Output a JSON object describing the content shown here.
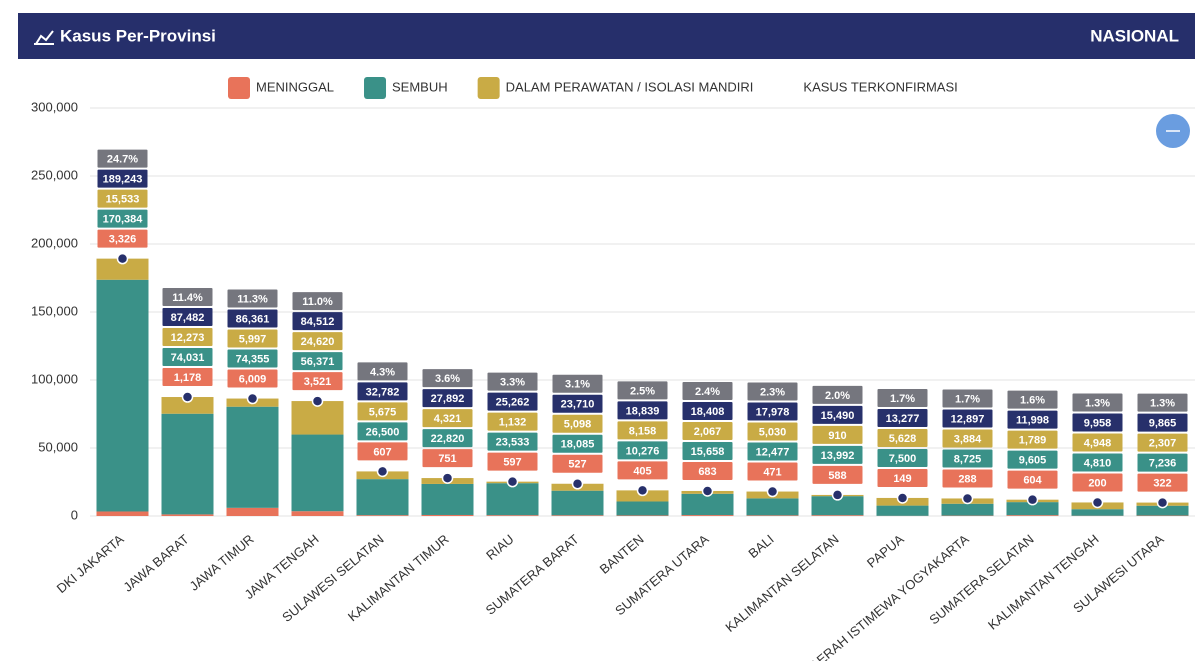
{
  "header": {
    "title": "Kasus Per-Provinsi",
    "scope": "NASIONAL"
  },
  "chart_data": {
    "type": "stacked-bar",
    "categories": [
      "DKI JAKARTA",
      "JAWA BARAT",
      "JAWA TIMUR",
      "JAWA TENGAH",
      "SULAWESI SELATAN",
      "KALIMANTAN TIMUR",
      "RIAU",
      "SUMATERA BARAT",
      "BANTEN",
      "SUMATERA UTARA",
      "BALI",
      "KALIMANTAN SELATAN",
      "PAPUA",
      "DAERAH ISTIMEWA YOGYAKARTA",
      "SUMATERA SELATAN",
      "KALIMANTAN TENGAH",
      "SULAWESI UTARA"
    ],
    "series": [
      {
        "name": "MENINGGAL",
        "color": "#e8735a",
        "values": [
          3326,
          1178,
          6009,
          3521,
          607,
          751,
          597,
          527,
          405,
          683,
          471,
          588,
          149,
          288,
          604,
          200,
          322
        ],
        "value_labels": [
          "3,326",
          "1,178",
          "6,009",
          "3,521",
          "607",
          "751",
          "597",
          "527",
          "405",
          "683",
          "471",
          "588",
          "149",
          "288",
          "604",
          "200",
          "322"
        ]
      },
      {
        "name": "SEMBUH",
        "color": "#3a9188",
        "values": [
          170384,
          74031,
          74355,
          56371,
          26500,
          22820,
          23533,
          18085,
          10276,
          15658,
          12477,
          13992,
          7500,
          8725,
          9605,
          4810,
          7236
        ],
        "value_labels": [
          "170,384",
          "74,031",
          "74,355",
          "56,371",
          "26,500",
          "22,820",
          "23,533",
          "18,085",
          "10,276",
          "15,658",
          "12,477",
          "13,992",
          "7,500",
          "8,725",
          "9,605",
          "4,810",
          "7,236"
        ]
      },
      {
        "name": "DALAM PERAWATAN / ISOLASI MANDIRI",
        "color": "#c9ab45",
        "values": [
          15533,
          12273,
          5997,
          24620,
          5675,
          4321,
          1132,
          5098,
          8158,
          2067,
          5030,
          910,
          5628,
          3884,
          1789,
          4948,
          2307
        ],
        "value_labels": [
          "15,533",
          "12,273",
          "5,997",
          "24,620",
          "5,675",
          "4,321",
          "1,132",
          "5,098",
          "8,158",
          "2,067",
          "5,030",
          "910",
          "5,628",
          "3,884",
          "1,789",
          "4,948",
          "2,307"
        ]
      },
      {
        "name": "KASUS TERKONFIRMASI",
        "color": "#27306b",
        "type": "point",
        "values": [
          189243,
          87482,
          86361,
          84512,
          32782,
          27892,
          25262,
          23710,
          18839,
          18408,
          17978,
          15490,
          13277,
          12897,
          11998,
          9958,
          9865
        ],
        "value_labels": [
          "189,243",
          "87,482",
          "86,361",
          "84,512",
          "32,782",
          "27,892",
          "25,262",
          "23,710",
          "18,839",
          "18,408",
          "17,978",
          "15,490",
          "13,277",
          "12,897",
          "11,998",
          "9,958",
          "9,865"
        ]
      }
    ],
    "shares": {
      "color": "#75767e",
      "values": [
        24.7,
        11.4,
        11.3,
        11.0,
        4.3,
        3.6,
        3.3,
        3.1,
        2.5,
        2.4,
        2.3,
        2.0,
        1.7,
        1.7,
        1.6,
        1.3,
        1.3
      ],
      "value_labels": [
        "24.7%",
        "11.4%",
        "11.3%",
        "11.0%",
        "4.3%",
        "3.6%",
        "3.3%",
        "3.1%",
        "2.5%",
        "2.4%",
        "2.3%",
        "2.0%",
        "1.7%",
        "1.7%",
        "1.6%",
        "1.3%",
        "1.3%"
      ]
    },
    "ylim": [
      0,
      300000
    ],
    "yticks": [
      0,
      {
        "value": 50000,
        "label": "50,000"
      },
      {
        "value": 100000,
        "label": "100,000"
      },
      {
        "value": 150000,
        "label": "150,000"
      },
      {
        "value": 200000,
        "label": "200,000"
      },
      {
        "value": 250000,
        "label": "250,000"
      },
      {
        "value": 300000,
        "label": "300,000"
      }
    ],
    "grid": true
  }
}
